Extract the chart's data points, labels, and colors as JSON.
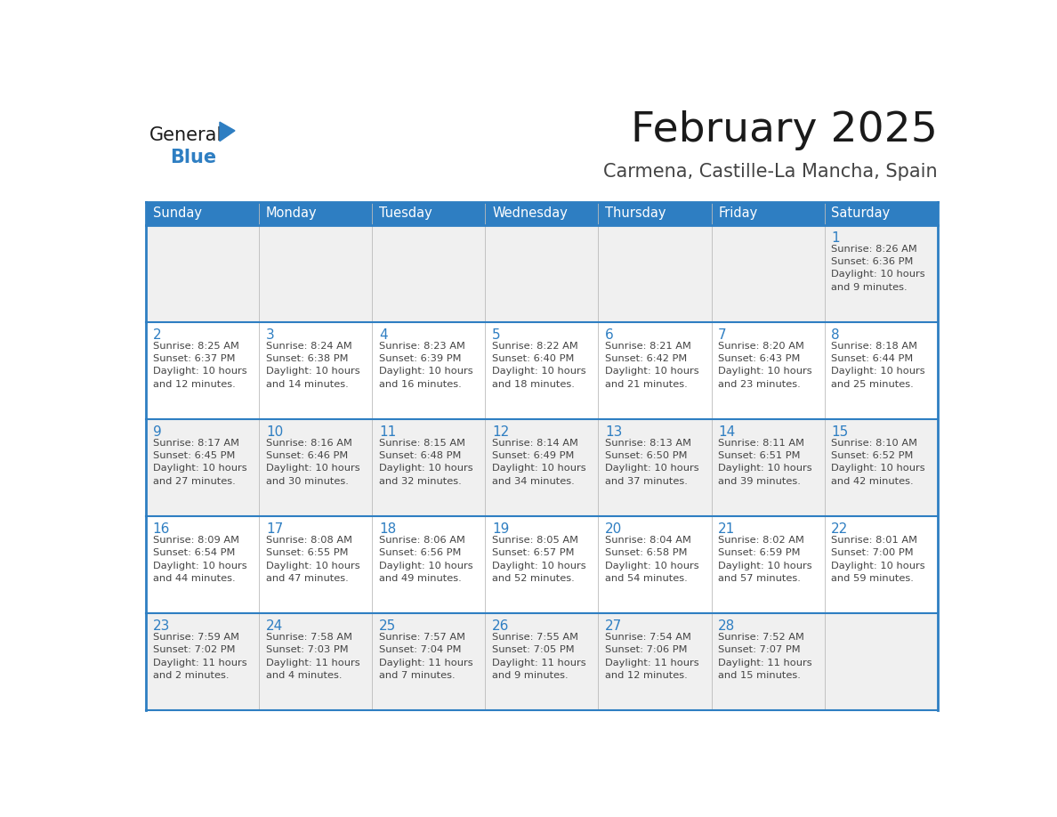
{
  "title": "February 2025",
  "subtitle": "Carmena, Castille-La Mancha, Spain",
  "days_of_week": [
    "Sunday",
    "Monday",
    "Tuesday",
    "Wednesday",
    "Thursday",
    "Friday",
    "Saturday"
  ],
  "header_bg_color": "#2E7EC2",
  "header_text_color": "#FFFFFF",
  "cell_bg_white": "#FFFFFF",
  "cell_bg_gray": "#F0F0F0",
  "border_color": "#2E7EC2",
  "row_sep_color": "#2E7EC2",
  "col_sep_color": "#BBBBBB",
  "day_num_color": "#2E7EC2",
  "cell_text_color": "#444444",
  "logo_general_color": "#1a1a1a",
  "logo_blue_color": "#2E7EC2",
  "title_color": "#1a1a1a",
  "subtitle_color": "#444444",
  "calendar_data": [
    [
      {
        "day": null,
        "info": ""
      },
      {
        "day": null,
        "info": ""
      },
      {
        "day": null,
        "info": ""
      },
      {
        "day": null,
        "info": ""
      },
      {
        "day": null,
        "info": ""
      },
      {
        "day": null,
        "info": ""
      },
      {
        "day": 1,
        "info": "Sunrise: 8:26 AM\nSunset: 6:36 PM\nDaylight: 10 hours\nand 9 minutes."
      }
    ],
    [
      {
        "day": 2,
        "info": "Sunrise: 8:25 AM\nSunset: 6:37 PM\nDaylight: 10 hours\nand 12 minutes."
      },
      {
        "day": 3,
        "info": "Sunrise: 8:24 AM\nSunset: 6:38 PM\nDaylight: 10 hours\nand 14 minutes."
      },
      {
        "day": 4,
        "info": "Sunrise: 8:23 AM\nSunset: 6:39 PM\nDaylight: 10 hours\nand 16 minutes."
      },
      {
        "day": 5,
        "info": "Sunrise: 8:22 AM\nSunset: 6:40 PM\nDaylight: 10 hours\nand 18 minutes."
      },
      {
        "day": 6,
        "info": "Sunrise: 8:21 AM\nSunset: 6:42 PM\nDaylight: 10 hours\nand 21 minutes."
      },
      {
        "day": 7,
        "info": "Sunrise: 8:20 AM\nSunset: 6:43 PM\nDaylight: 10 hours\nand 23 minutes."
      },
      {
        "day": 8,
        "info": "Sunrise: 8:18 AM\nSunset: 6:44 PM\nDaylight: 10 hours\nand 25 minutes."
      }
    ],
    [
      {
        "day": 9,
        "info": "Sunrise: 8:17 AM\nSunset: 6:45 PM\nDaylight: 10 hours\nand 27 minutes."
      },
      {
        "day": 10,
        "info": "Sunrise: 8:16 AM\nSunset: 6:46 PM\nDaylight: 10 hours\nand 30 minutes."
      },
      {
        "day": 11,
        "info": "Sunrise: 8:15 AM\nSunset: 6:48 PM\nDaylight: 10 hours\nand 32 minutes."
      },
      {
        "day": 12,
        "info": "Sunrise: 8:14 AM\nSunset: 6:49 PM\nDaylight: 10 hours\nand 34 minutes."
      },
      {
        "day": 13,
        "info": "Sunrise: 8:13 AM\nSunset: 6:50 PM\nDaylight: 10 hours\nand 37 minutes."
      },
      {
        "day": 14,
        "info": "Sunrise: 8:11 AM\nSunset: 6:51 PM\nDaylight: 10 hours\nand 39 minutes."
      },
      {
        "day": 15,
        "info": "Sunrise: 8:10 AM\nSunset: 6:52 PM\nDaylight: 10 hours\nand 42 minutes."
      }
    ],
    [
      {
        "day": 16,
        "info": "Sunrise: 8:09 AM\nSunset: 6:54 PM\nDaylight: 10 hours\nand 44 minutes."
      },
      {
        "day": 17,
        "info": "Sunrise: 8:08 AM\nSunset: 6:55 PM\nDaylight: 10 hours\nand 47 minutes."
      },
      {
        "day": 18,
        "info": "Sunrise: 8:06 AM\nSunset: 6:56 PM\nDaylight: 10 hours\nand 49 minutes."
      },
      {
        "day": 19,
        "info": "Sunrise: 8:05 AM\nSunset: 6:57 PM\nDaylight: 10 hours\nand 52 minutes."
      },
      {
        "day": 20,
        "info": "Sunrise: 8:04 AM\nSunset: 6:58 PM\nDaylight: 10 hours\nand 54 minutes."
      },
      {
        "day": 21,
        "info": "Sunrise: 8:02 AM\nSunset: 6:59 PM\nDaylight: 10 hours\nand 57 minutes."
      },
      {
        "day": 22,
        "info": "Sunrise: 8:01 AM\nSunset: 7:00 PM\nDaylight: 10 hours\nand 59 minutes."
      }
    ],
    [
      {
        "day": 23,
        "info": "Sunrise: 7:59 AM\nSunset: 7:02 PM\nDaylight: 11 hours\nand 2 minutes."
      },
      {
        "day": 24,
        "info": "Sunrise: 7:58 AM\nSunset: 7:03 PM\nDaylight: 11 hours\nand 4 minutes."
      },
      {
        "day": 25,
        "info": "Sunrise: 7:57 AM\nSunset: 7:04 PM\nDaylight: 11 hours\nand 7 minutes."
      },
      {
        "day": 26,
        "info": "Sunrise: 7:55 AM\nSunset: 7:05 PM\nDaylight: 11 hours\nand 9 minutes."
      },
      {
        "day": 27,
        "info": "Sunrise: 7:54 AM\nSunset: 7:06 PM\nDaylight: 11 hours\nand 12 minutes."
      },
      {
        "day": 28,
        "info": "Sunrise: 7:52 AM\nSunset: 7:07 PM\nDaylight: 11 hours\nand 15 minutes."
      },
      {
        "day": null,
        "info": ""
      }
    ]
  ],
  "row_bg_colors": [
    "#F0F0F0",
    "#FFFFFF",
    "#F0F0F0",
    "#FFFFFF",
    "#F0F0F0"
  ]
}
